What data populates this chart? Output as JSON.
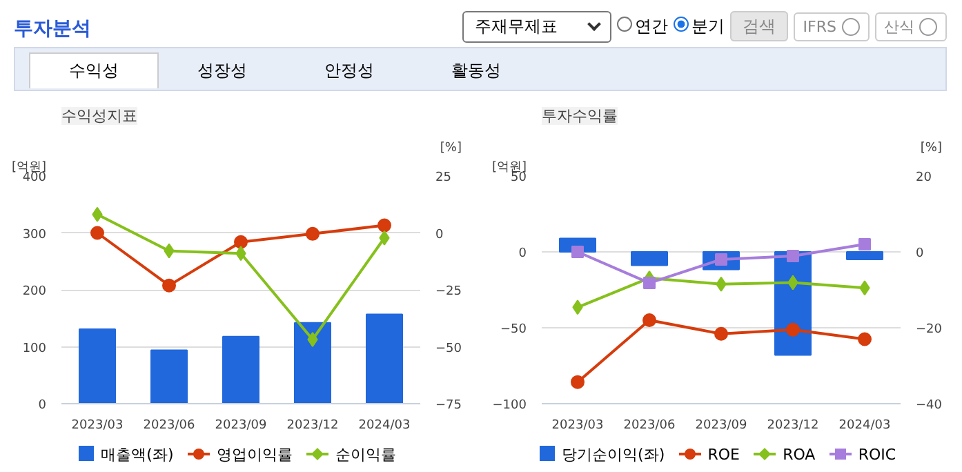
{
  "chart_data": [
    {
      "type": "other",
      "title": "투자분석",
      "annotations": [
        "주재무제표",
        "연간",
        "분기",
        "검색",
        "IFRS",
        "산식",
        "수익성",
        "성장성",
        "안정성",
        "활동성"
      ]
    },
    {
      "type": "bar",
      "title": "수익성지표",
      "ylabel": "[억원]",
      "y2label": "[%]",
      "categories": [
        "2023/03",
        "2023/06",
        "2023/09",
        "2023/12",
        "2024/03"
      ],
      "ylim": [
        0,
        400
      ],
      "yticks": [
        0,
        100,
        200,
        300,
        400
      ],
      "y2lim": [
        -75,
        25
      ],
      "y2ticks": [
        -75,
        -50,
        -25,
        0,
        25
      ],
      "grid": "y",
      "legend": "bottom",
      "series": [
        {
          "name": "매출액(좌)",
          "type": "bar",
          "color": "#2068dc",
          "values": [
            131,
            94,
            118,
            142,
            157
          ]
        },
        {
          "name": "영업이익률",
          "type": "line",
          "axis": "y2",
          "marker": "circle",
          "color": "#d63c0c",
          "values": [
            0,
            -23.1,
            -4.0,
            -0.4,
            3.3
          ]
        },
        {
          "name": "순이익률",
          "type": "line",
          "axis": "y2",
          "marker": "diamond",
          "color": "#86c01c",
          "values": [
            8.1,
            -7.9,
            -9.0,
            -46.8,
            -2.2
          ]
        }
      ]
    },
    {
      "type": "bar",
      "title": "투자수익률",
      "ylabel": "[억원]",
      "y2label": "[%]",
      "categories": [
        "2023/03",
        "2023/06",
        "2023/09",
        "2023/12",
        "2024/03"
      ],
      "ylim": [
        -100,
        50
      ],
      "yticks": [
        -100,
        -50,
        0,
        50
      ],
      "y2lim": [
        -40,
        20
      ],
      "y2ticks": [
        -40,
        -20,
        0,
        20
      ],
      "grid": "y",
      "legend": "bottom",
      "series": [
        {
          "name": "당기순이익(좌)",
          "type": "bar",
          "color": "#2068dc",
          "values": [
            8.9,
            -8.9,
            -11.6,
            -67.9,
            -5.0
          ]
        },
        {
          "name": "ROE",
          "type": "line",
          "axis": "y2",
          "marker": "circle",
          "color": "#d63c0c",
          "values": [
            -34.3,
            -18.0,
            -21.6,
            -20.5,
            -23.0
          ]
        },
        {
          "name": "ROA",
          "type": "line",
          "axis": "y2",
          "marker": "diamond",
          "color": "#86c01c",
          "values": [
            -14.6,
            -6.9,
            -8.5,
            -8.1,
            -9.5
          ]
        },
        {
          "name": "ROIC",
          "type": "line",
          "axis": "y2",
          "marker": "square",
          "color": "#a67ddc",
          "values": [
            0,
            -8.2,
            -2.0,
            -1.1,
            2.0
          ]
        }
      ]
    }
  ]
}
